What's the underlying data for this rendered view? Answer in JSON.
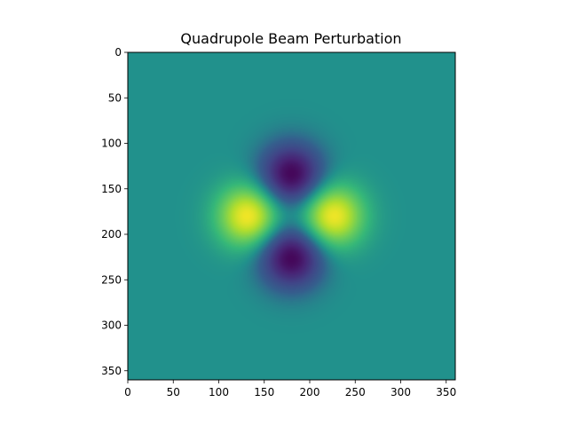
{
  "chart_data": {
    "type": "heatmap",
    "title": "Quadrupole Beam Perturbation",
    "xlabel": "",
    "ylabel": "",
    "image_size": [
      360,
      360
    ],
    "xlim": [
      0,
      360
    ],
    "ylim": [
      360,
      0
    ],
    "xticks": [
      0,
      50,
      100,
      150,
      200,
      250,
      300,
      350
    ],
    "yticks": [
      0,
      50,
      100,
      150,
      200,
      250,
      300,
      350
    ],
    "colormap": "viridis",
    "features": [
      {
        "kind": "positive-lobe",
        "x": 133,
        "y": 180,
        "value": 1.0
      },
      {
        "kind": "positive-lobe",
        "x": 225,
        "y": 180,
        "value": 1.0
      },
      {
        "kind": "negative-lobe",
        "x": 180,
        "y": 135,
        "value": -1.0
      },
      {
        "kind": "negative-lobe",
        "x": 180,
        "y": 225,
        "value": -1.0
      }
    ],
    "background_value": 0.0
  },
  "colors": {
    "background": "#21918c",
    "positive_peak": "#fde725",
    "negative_peak": "#440154",
    "frame": "#000000"
  }
}
